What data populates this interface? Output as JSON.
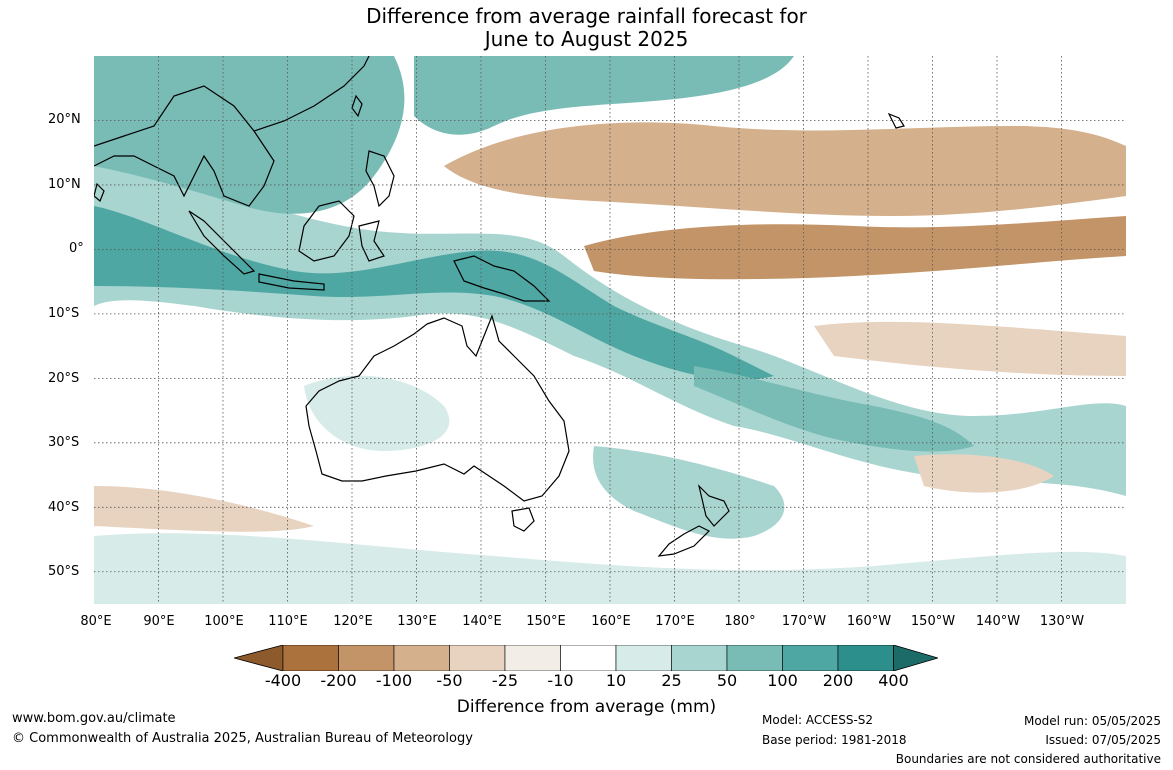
{
  "title_line1": "Difference from average rainfall forecast for",
  "title_line2": "June to August 2025",
  "lat_ticks": [
    "20°N",
    "10°N",
    "0°",
    "10°S",
    "20°S",
    "30°S",
    "40°S",
    "50°S"
  ],
  "lon_ticks": [
    "80°E",
    "90°E",
    "100°E",
    "110°E",
    "120°E",
    "130°E",
    "140°E",
    "150°E",
    "160°E",
    "170°E",
    "180°",
    "170°W",
    "160°W",
    "150°W",
    "140°W",
    "130°W"
  ],
  "colorbar": {
    "labels": [
      "-400",
      "-200",
      "-100",
      "-50",
      "-25",
      "-10",
      "10",
      "25",
      "50",
      "100",
      "200",
      "400"
    ],
    "colors": [
      "#8c5a2b",
      "#ab723d",
      "#c39468",
      "#d4b08c",
      "#e7d3bf",
      "#f2ede6",
      "#ffffff",
      "#d7ebe9",
      "#a9d5d1",
      "#79bcb6",
      "#4ea7a2",
      "#2d8f8c",
      "#1c6b68"
    ],
    "title": "Difference from average (mm)"
  },
  "footer": {
    "website": "www.bom.gov.au/climate",
    "copyright": "© Commonwealth of Australia 2025, Australian Bureau of Meteorology",
    "model": "Model: ACCESS-S2",
    "base_period": "Base period: 1981-2018",
    "model_run": "Model run: 05/05/2025",
    "issued": "Issued: 07/05/2025",
    "boundaries": "Boundaries are not considered authoritative"
  },
  "map_extent": {
    "lon_min": 80,
    "lon_max": 240,
    "lat_min": -55,
    "lat_max": 30
  }
}
